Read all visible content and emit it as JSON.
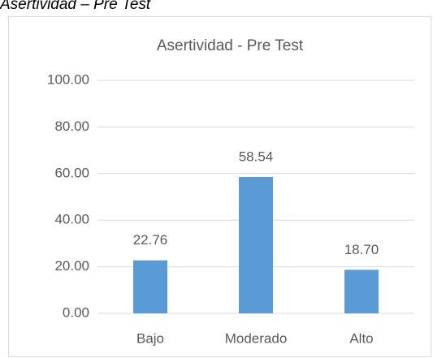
{
  "chart_data": {
    "type": "bar",
    "caption": "Asertividad – Pre Test",
    "title": "Asertividad - Pre Test",
    "categories": [
      "Bajo",
      "Moderado",
      "Alto"
    ],
    "values": [
      22.76,
      58.54,
      18.7
    ],
    "value_labels": [
      "22.76",
      "58.54",
      "18.70"
    ],
    "color": "#5b9bd5",
    "ylim": [
      0,
      100
    ],
    "yticks": [
      {
        "value": 0,
        "label": "0.00"
      },
      {
        "value": 20,
        "label": "20.00"
      },
      {
        "value": 40,
        "label": "40.00"
      },
      {
        "value": 60,
        "label": "60.00"
      },
      {
        "value": 80,
        "label": "80.00"
      },
      {
        "value": 100,
        "label": "100.00"
      }
    ],
    "grid": true
  }
}
